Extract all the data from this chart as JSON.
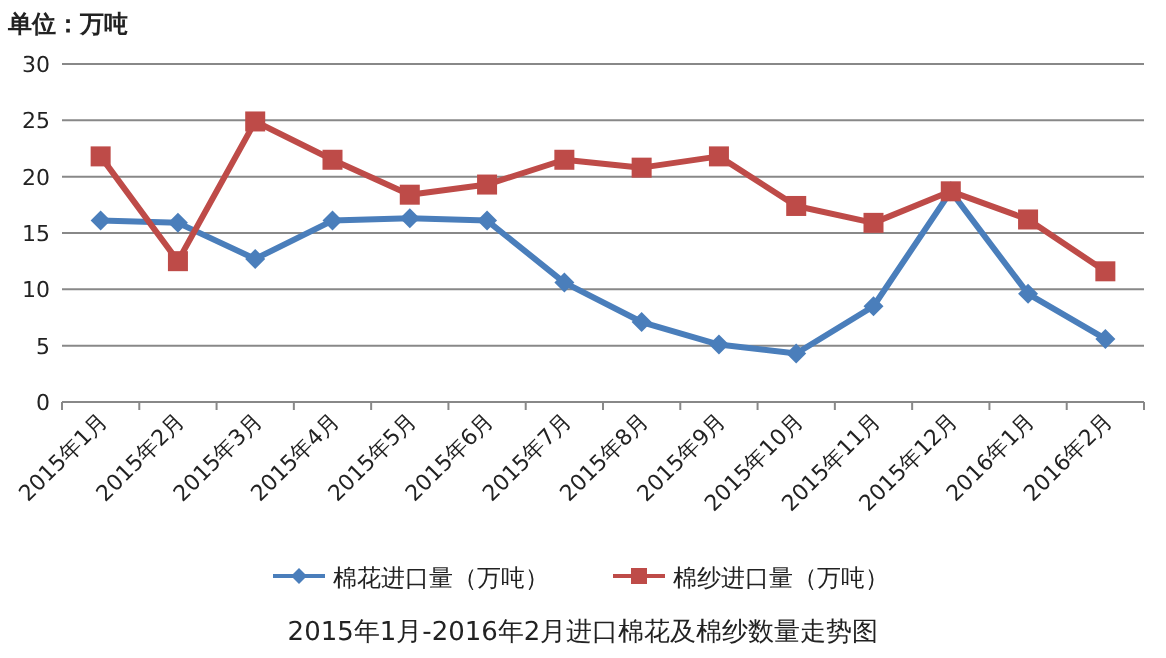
{
  "chart_data": {
    "type": "line",
    "title": "2015年1月-2016年2月进口棉花及棉纱数量走势图",
    "ylabel": "单位：万吨",
    "categories": [
      "2015年1月",
      "2015年2月",
      "2015年3月",
      "2015年4月",
      "2015年5月",
      "2015年6月",
      "2015年7月",
      "2015年8月",
      "2015年9月",
      "2015年10月",
      "2015年11月",
      "2015年12月",
      "2016年1月",
      "2016年2月"
    ],
    "series": [
      {
        "name": "棉花进口量（万吨）",
        "color": "#4a7ebb",
        "marker": "diamond",
        "values": [
          16.1,
          15.9,
          12.7,
          16.1,
          16.3,
          16.1,
          10.6,
          7.1,
          5.1,
          4.3,
          8.5,
          18.7,
          9.6,
          5.6
        ]
      },
      {
        "name": "棉纱进口量（万吨）",
        "color": "#be4b48",
        "marker": "square",
        "values": [
          21.8,
          12.5,
          24.9,
          21.5,
          18.4,
          19.3,
          21.5,
          20.8,
          21.8,
          17.4,
          15.9,
          18.7,
          16.2,
          11.6
        ]
      }
    ],
    "ylim": [
      0,
      30
    ],
    "yticks": [
      0,
      5,
      10,
      15,
      20,
      25,
      30
    ],
    "grid": "y",
    "legend": "bottom"
  }
}
